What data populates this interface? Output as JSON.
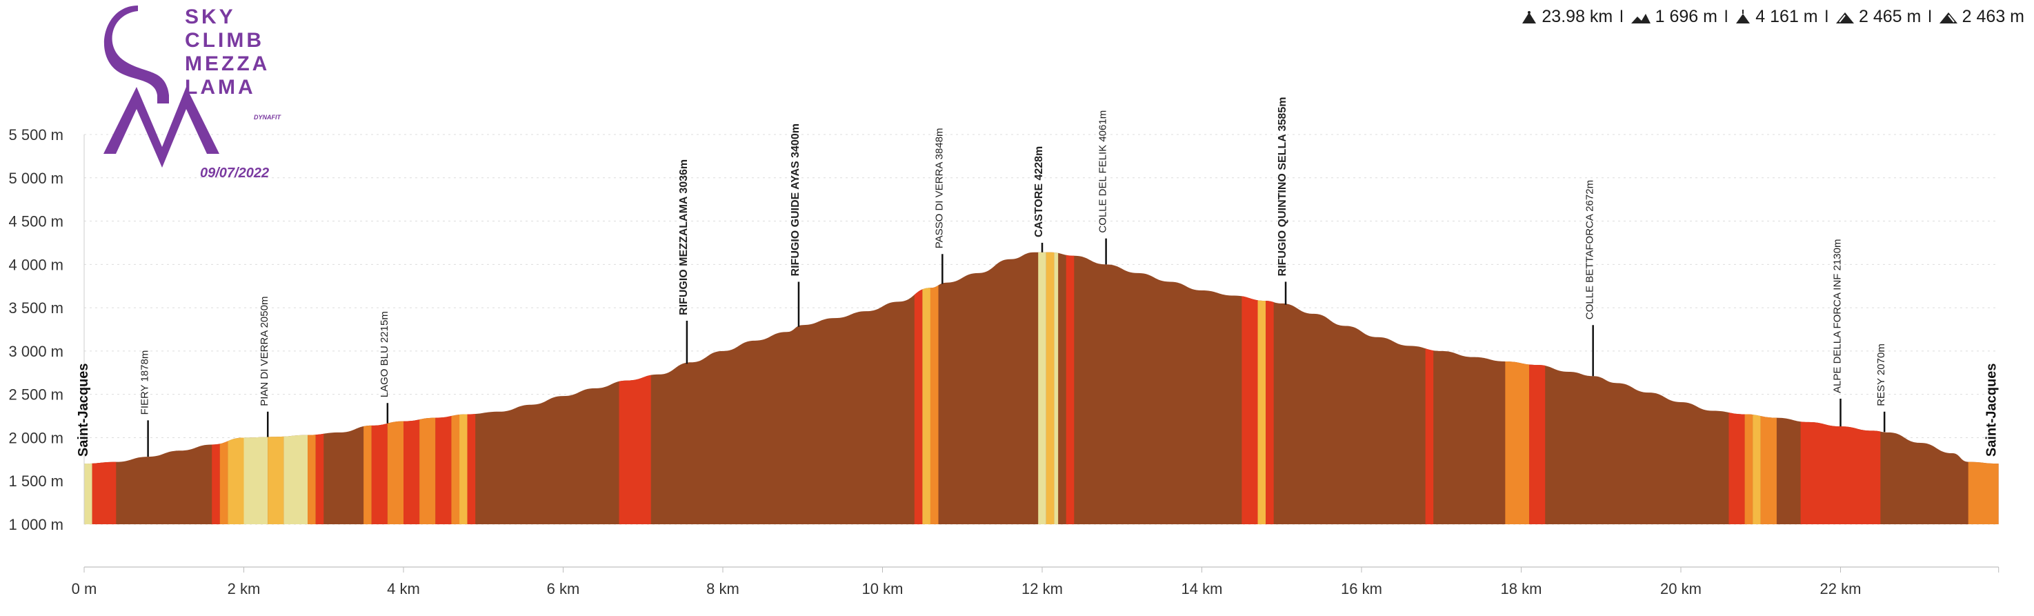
{
  "event": {
    "logo_text_lines": [
      "SKY",
      "CLIMB",
      "MEZZA",
      "LAMA"
    ],
    "date": "09/07/2022",
    "brand": "DYNAFIT",
    "accent_color": "#7a3aa0"
  },
  "stats": [
    {
      "icon": "distance-icon",
      "value": "23.98 km"
    },
    {
      "icon": "elevation-gain-icon",
      "value": "1 696 m"
    },
    {
      "icon": "max-altitude-icon",
      "value": "4 161 m"
    },
    {
      "icon": "ascent-icon",
      "value": "2 465 m"
    },
    {
      "icon": "descent-icon",
      "value": "2 463 m"
    }
  ],
  "chart_data": {
    "type": "area",
    "xlabel": "",
    "ylabel": "",
    "xlim": [
      0,
      24
    ],
    "ylim": [
      1000,
      5500
    ],
    "x_ticks": [
      {
        "value": 0,
        "label": "0 m"
      },
      {
        "value": 2,
        "label": "2 km"
      },
      {
        "value": 4,
        "label": "4 km"
      },
      {
        "value": 6,
        "label": "6 km"
      },
      {
        "value": 8,
        "label": "8 km"
      },
      {
        "value": 10,
        "label": "10 km"
      },
      {
        "value": 12,
        "label": "12 km"
      },
      {
        "value": 14,
        "label": "14 km"
      },
      {
        "value": 16,
        "label": "16 km"
      },
      {
        "value": 18,
        "label": "18 km"
      },
      {
        "value": 20,
        "label": "20 km"
      },
      {
        "value": 22,
        "label": "22 km"
      }
    ],
    "y_ticks": [
      {
        "value": 1000,
        "label": "1 000 m"
      },
      {
        "value": 1500,
        "label": "1 500 m"
      },
      {
        "value": 2000,
        "label": "2 000 m"
      },
      {
        "value": 2500,
        "label": "2 500 m"
      },
      {
        "value": 3000,
        "label": "3 000 m"
      },
      {
        "value": 3500,
        "label": "3 500 m"
      },
      {
        "value": 4000,
        "label": "4 000 m"
      },
      {
        "value": 4500,
        "label": "4 500 m"
      },
      {
        "value": 5000,
        "label": "5 000 m"
      },
      {
        "value": 5500,
        "label": "5 500 m"
      }
    ],
    "grid": true,
    "base_color": "#944822",
    "profile": {
      "x": [
        0,
        0.4,
        0.8,
        1.2,
        1.6,
        2.0,
        2.4,
        2.8,
        3.2,
        3.6,
        4.0,
        4.4,
        4.8,
        5.2,
        5.6,
        6.0,
        6.4,
        6.8,
        7.2,
        7.6,
        8.0,
        8.4,
        8.8,
        9.0,
        9.4,
        9.8,
        10.2,
        10.6,
        10.8,
        11.2,
        11.6,
        11.9,
        12.1,
        12.4,
        12.8,
        13.2,
        13.6,
        14.0,
        14.4,
        14.8,
        15.0,
        15.4,
        15.8,
        16.2,
        16.6,
        17.0,
        17.4,
        17.8,
        18.2,
        18.6,
        18.9,
        19.2,
        19.6,
        20.0,
        20.4,
        20.8,
        21.2,
        21.6,
        22.0,
        22.4,
        22.6,
        23.0,
        23.4,
        23.6,
        23.98
      ],
      "y": [
        1700,
        1720,
        1780,
        1850,
        1920,
        2000,
        2010,
        2030,
        2060,
        2140,
        2190,
        2230,
        2270,
        2300,
        2380,
        2480,
        2570,
        2660,
        2730,
        2870,
        3000,
        3120,
        3220,
        3300,
        3380,
        3460,
        3570,
        3730,
        3790,
        3900,
        4060,
        4140,
        4140,
        4100,
        4000,
        3900,
        3800,
        3700,
        3640,
        3580,
        3550,
        3430,
        3290,
        3160,
        3060,
        3000,
        2930,
        2880,
        2840,
        2760,
        2710,
        2630,
        2520,
        2410,
        2310,
        2270,
        2230,
        2180,
        2130,
        2080,
        2060,
        1940,
        1820,
        1720,
        1700
      ]
    },
    "bands": [
      {
        "x0": 0.0,
        "x1": 0.1,
        "color": "#e8e098"
      },
      {
        "x0": 0.1,
        "x1": 0.4,
        "color": "#e23a1e"
      },
      {
        "x0": 1.6,
        "x1": 1.7,
        "color": "#e23a1e"
      },
      {
        "x0": 1.7,
        "x1": 1.8,
        "color": "#f0892a"
      },
      {
        "x0": 1.8,
        "x1": 2.0,
        "color": "#f4b944"
      },
      {
        "x0": 2.0,
        "x1": 2.3,
        "color": "#e8e098"
      },
      {
        "x0": 2.3,
        "x1": 2.5,
        "color": "#f4b944"
      },
      {
        "x0": 2.5,
        "x1": 2.8,
        "color": "#e8e098"
      },
      {
        "x0": 2.8,
        "x1": 2.9,
        "color": "#f0892a"
      },
      {
        "x0": 2.9,
        "x1": 3.0,
        "color": "#e23a1e"
      },
      {
        "x0": 3.5,
        "x1": 3.6,
        "color": "#f0892a"
      },
      {
        "x0": 3.6,
        "x1": 3.8,
        "color": "#e23a1e"
      },
      {
        "x0": 3.8,
        "x1": 4.0,
        "color": "#f0892a"
      },
      {
        "x0": 4.0,
        "x1": 4.2,
        "color": "#e23a1e"
      },
      {
        "x0": 4.2,
        "x1": 4.4,
        "color": "#f0892a"
      },
      {
        "x0": 4.4,
        "x1": 4.6,
        "color": "#e23a1e"
      },
      {
        "x0": 4.6,
        "x1": 4.7,
        "color": "#f0892a"
      },
      {
        "x0": 4.7,
        "x1": 4.8,
        "color": "#f4b944"
      },
      {
        "x0": 4.8,
        "x1": 4.9,
        "color": "#e23a1e"
      },
      {
        "x0": 6.7,
        "x1": 7.1,
        "color": "#e23a1e"
      },
      {
        "x0": 10.4,
        "x1": 10.5,
        "color": "#e23a1e"
      },
      {
        "x0": 10.5,
        "x1": 10.6,
        "color": "#f4b944"
      },
      {
        "x0": 10.6,
        "x1": 10.7,
        "color": "#f0892a"
      },
      {
        "x0": 11.95,
        "x1": 12.05,
        "color": "#e8e098"
      },
      {
        "x0": 12.05,
        "x1": 12.15,
        "color": "#f4b944"
      },
      {
        "x0": 12.15,
        "x1": 12.2,
        "color": "#e8e098"
      },
      {
        "x0": 12.3,
        "x1": 12.4,
        "color": "#e23a1e"
      },
      {
        "x0": 14.5,
        "x1": 14.7,
        "color": "#e23a1e"
      },
      {
        "x0": 14.7,
        "x1": 14.8,
        "color": "#f4b944"
      },
      {
        "x0": 14.8,
        "x1": 14.9,
        "color": "#e23a1e"
      },
      {
        "x0": 16.8,
        "x1": 16.9,
        "color": "#e23a1e"
      },
      {
        "x0": 17.8,
        "x1": 18.1,
        "color": "#f0892a"
      },
      {
        "x0": 18.1,
        "x1": 18.3,
        "color": "#e23a1e"
      },
      {
        "x0": 20.6,
        "x1": 20.8,
        "color": "#e23a1e"
      },
      {
        "x0": 20.8,
        "x1": 20.9,
        "color": "#f0892a"
      },
      {
        "x0": 20.9,
        "x1": 21.0,
        "color": "#f4b944"
      },
      {
        "x0": 21.0,
        "x1": 21.2,
        "color": "#f0892a"
      },
      {
        "x0": 21.5,
        "x1": 22.5,
        "color": "#e23a1e"
      },
      {
        "x0": 23.6,
        "x1": 23.98,
        "color": "#f0892a"
      }
    ],
    "waypoints": [
      {
        "x": 0.8,
        "name": "FIERY 1878m",
        "bold": false,
        "label_y": 2450
      },
      {
        "x": 2.3,
        "name": "PIAN DI VERRA 2050m",
        "bold": false,
        "label_y": 2550
      },
      {
        "x": 3.8,
        "name": "LAGO BLU 2215m",
        "bold": false,
        "label_y": 2650
      },
      {
        "x": 7.55,
        "name": "RIFUGIO MEZZALAMA 3036m",
        "bold": true,
        "label_y": 3600
      },
      {
        "x": 8.95,
        "name": "RIFUGIO GUIDE AYAS 3400m",
        "bold": true,
        "label_y": 4050
      },
      {
        "x": 10.75,
        "name": "PASSO DI VERRA 3848m",
        "bold": false,
        "label_y": 4370
      },
      {
        "x": 12.0,
        "name": "CASTORE 4228m",
        "bold": true,
        "label_y": 4500
      },
      {
        "x": 12.8,
        "name": "COLLE DEL FELIK 4061m",
        "bold": false,
        "label_y": 4550
      },
      {
        "x": 15.05,
        "name": "RIFUGIO QUINTINO SELLA 3585m",
        "bold": true,
        "label_y": 4050
      },
      {
        "x": 18.9,
        "name": "COLLE BETTAFORCA 2672m",
        "bold": false,
        "label_y": 3550
      },
      {
        "x": 22.0,
        "name": "ALPE DELLA FORCA INF 2130m",
        "bold": false,
        "label_y": 2700
      },
      {
        "x": 22.55,
        "name": "RESY 2070m",
        "bold": false,
        "label_y": 2550
      }
    ],
    "start_label": "Saint-Jacques",
    "end_label": "Saint-Jacques"
  }
}
